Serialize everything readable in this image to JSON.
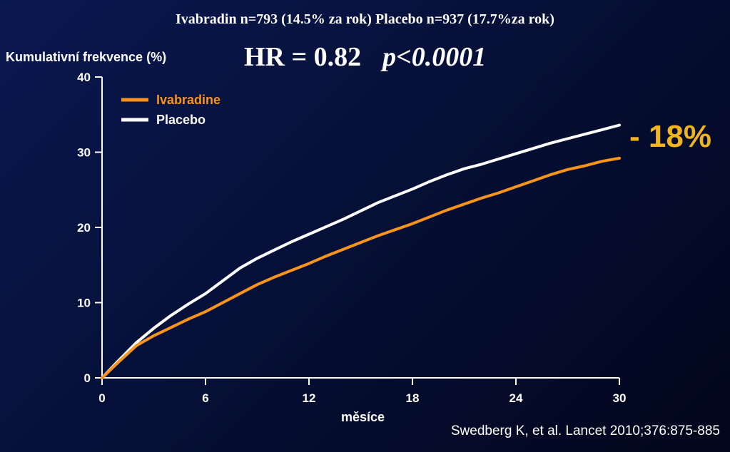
{
  "title": "Ivabradin n=793 (14.5% za rok) Placebo n=937 (17.7%za rok)",
  "hr_text": "HR = 0.82",
  "p_text": "p<0.0001",
  "reduction_label": "- 18%",
  "source": "Swedberg K, et al. Lancet 2010;376:875-885",
  "colors": {
    "ivabradine": "#f7941d",
    "placebo": "#ffffff",
    "reduction": "#f0b41e"
  },
  "chart_data": {
    "type": "line",
    "ylabel": "Kumulativní frekvence (%)",
    "xlabel": "měsíce",
    "xlim": [
      0,
      30
    ],
    "ylim": [
      0,
      40
    ],
    "x_ticks": [
      "0",
      "6",
      "12",
      "18",
      "24",
      "30"
    ],
    "y_ticks": [
      "0",
      "10",
      "20",
      "30",
      "40"
    ],
    "grid": false,
    "legend": "top-left",
    "series": [
      {
        "name": "Ivabradine",
        "x": [
          0,
          1,
          2,
          3,
          4,
          5,
          6,
          7,
          8,
          9,
          10,
          11,
          12,
          13,
          14,
          15,
          16,
          17,
          18,
          19,
          20,
          21,
          22,
          23,
          24,
          25,
          26,
          27,
          28,
          29,
          30
        ],
        "values": [
          0,
          2.2,
          4.3,
          5.6,
          6.7,
          7.8,
          8.8,
          10.0,
          11.2,
          12.4,
          13.4,
          14.3,
          15.2,
          16.2,
          17.1,
          18.0,
          18.9,
          19.7,
          20.5,
          21.4,
          22.3,
          23.1,
          23.9,
          24.6,
          25.4,
          26.2,
          27.0,
          27.7,
          28.2,
          28.8,
          29.2
        ]
      },
      {
        "name": "Placebo",
        "x": [
          0,
          1,
          2,
          3,
          4,
          5,
          6,
          7,
          8,
          9,
          10,
          11,
          12,
          13,
          14,
          15,
          16,
          17,
          18,
          19,
          20,
          21,
          22,
          23,
          24,
          25,
          26,
          27,
          28,
          29,
          30
        ],
        "values": [
          0,
          2.4,
          4.7,
          6.6,
          8.3,
          9.8,
          11.2,
          12.9,
          14.6,
          15.9,
          17.0,
          18.1,
          19.1,
          20.1,
          21.1,
          22.2,
          23.3,
          24.2,
          25.1,
          26.1,
          27.0,
          27.8,
          28.4,
          29.1,
          29.8,
          30.5,
          31.2,
          31.8,
          32.4,
          33.0,
          33.6
        ]
      }
    ]
  }
}
